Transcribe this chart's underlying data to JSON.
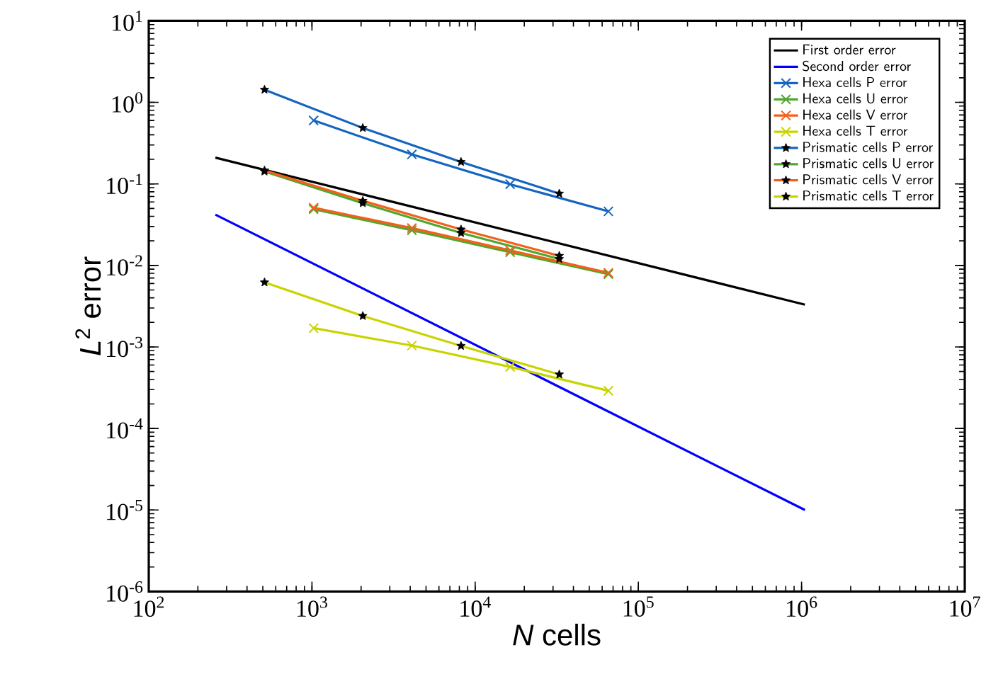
{
  "chart_data": {
    "type": "line",
    "xlabel": "*N* cells",
    "ylabel": "*L*$^{2}$ error",
    "log": "xy",
    "legend": "top right",
    "grid": false,
    "line_style": "solid",
    "xlim": [
      100,
      10000000
    ],
    "ylim": [
      1e-06,
      10
    ],
    "xticks": [
      {
        "value": 100,
        "label": "10$^{2}$"
      },
      {
        "value": 1000,
        "label": "10$^{3}$"
      },
      {
        "value": 10000,
        "label": "10$^{4}$"
      },
      {
        "value": 100000,
        "label": "10$^{5}$"
      },
      {
        "value": 1000000,
        "label": "10$^{6}$"
      },
      {
        "value": 10000000,
        "label": "10$^{7}$"
      }
    ],
    "yticks": [
      {
        "value": 1e-06,
        "label": "10$^{-6}$"
      },
      {
        "value": 1e-05,
        "label": "10$^{-5}$"
      },
      {
        "value": 0.0001,
        "label": "10$^{-4}$"
      },
      {
        "value": 0.001,
        "label": "10$^{-3}$"
      },
      {
        "value": 0.01,
        "label": "10$^{-2}$"
      },
      {
        "value": 0.1,
        "label": "10$^{-1}$"
      },
      {
        "value": 1,
        "label": "10$^{0}$"
      },
      {
        "value": 10,
        "label": "10$^{1}$"
      }
    ],
    "series": [
      {
        "name": "First order error",
        "color": "#000000",
        "marker": "none",
        "x": [
          256,
          1048576
        ],
        "values": [
          0.21,
          0.0033
        ]
      },
      {
        "name": "Second order error",
        "color": "#0000ff",
        "marker": "none",
        "x": [
          256,
          1048576
        ],
        "values": [
          0.042,
          1e-05
        ]
      },
      {
        "name": "Hexa cells P error",
        "color": "#1565c0",
        "marker": "cross",
        "x": [
          1024,
          4096,
          16384,
          65536
        ],
        "values": [
          0.6,
          0.23,
          0.099,
          0.046
        ]
      },
      {
        "name": "Hexa cells U error",
        "color": "#4ea72e",
        "marker": "cross",
        "x": [
          1024,
          4096,
          16384,
          65536
        ],
        "values": [
          0.049,
          0.027,
          0.0145,
          0.0078
        ]
      },
      {
        "name": "Hexa cells V error",
        "color": "#f4601c",
        "marker": "cross",
        "x": [
          1024,
          4096,
          16384,
          65536
        ],
        "values": [
          0.051,
          0.0287,
          0.0153,
          0.0081
        ]
      },
      {
        "name": "Hexa cells T error",
        "color": "#c8d400",
        "marker": "cross",
        "x": [
          1024,
          4096,
          16384,
          65536
        ],
        "values": [
          0.0017,
          0.00104,
          0.00057,
          0.00029
        ]
      },
      {
        "name": "Prismatic cells P error",
        "color": "#1565c0",
        "marker": "star",
        "x": [
          512,
          2048,
          8192,
          32768
        ],
        "values": [
          1.43,
          0.485,
          0.186,
          0.076
        ]
      },
      {
        "name": "Prismatic cells U error",
        "color": "#4ea72e",
        "marker": "star",
        "x": [
          512,
          2048,
          8192,
          32768
        ],
        "values": [
          0.142,
          0.058,
          0.025,
          0.012
        ]
      },
      {
        "name": "Prismatic cells V error",
        "color": "#f4601c",
        "marker": "star",
        "x": [
          512,
          2048,
          8192,
          32768
        ],
        "values": [
          0.146,
          0.062,
          0.0276,
          0.0131
        ]
      },
      {
        "name": "Prismatic cells T error",
        "color": "#c8d400",
        "marker": "star",
        "x": [
          512,
          2048,
          8192,
          32768
        ],
        "values": [
          0.0062,
          0.0024,
          0.00103,
          0.00046
        ]
      }
    ]
  }
}
